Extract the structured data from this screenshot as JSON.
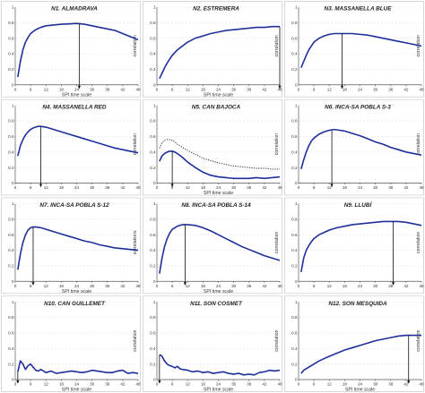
{
  "chart_data": [
    {
      "type": "line",
      "title": "N1. ALMADRAVA",
      "xlabel": "SPI time scale",
      "ylabel": "correlation",
      "ylim": [
        0,
        1
      ],
      "xticks": [
        0,
        6,
        12,
        18,
        24,
        30,
        36,
        42,
        48
      ],
      "yticks": [
        0,
        0.2,
        0.4,
        0.6,
        0.8,
        1
      ],
      "series": [
        {
          "x": [
            1,
            2,
            3,
            4,
            5,
            6,
            8,
            10,
            12,
            15,
            18,
            21,
            24,
            27,
            30,
            33,
            36,
            39,
            42,
            45,
            48
          ],
          "values": [
            0.1,
            0.3,
            0.45,
            0.55,
            0.61,
            0.66,
            0.71,
            0.74,
            0.76,
            0.77,
            0.78,
            0.785,
            0.79,
            0.78,
            0.76,
            0.74,
            0.72,
            0.7,
            0.66,
            0.62,
            0.58
          ],
          "style": "solid"
        }
      ],
      "arrow_x": 25
    },
    {
      "type": "line",
      "title": "N2. ESTREMERA",
      "xlabel": "SPI time scale",
      "ylabel": "correlation",
      "ylim": [
        0,
        1
      ],
      "xticks": [
        0,
        6,
        12,
        18,
        24,
        30,
        36,
        42,
        48
      ],
      "yticks": [
        0,
        0.2,
        0.4,
        0.6,
        0.8,
        1
      ],
      "series": [
        {
          "x": [
            1,
            2,
            3,
            4,
            5,
            6,
            8,
            10,
            12,
            15,
            18,
            21,
            24,
            27,
            30,
            33,
            36,
            39,
            42,
            45,
            48
          ],
          "values": [
            0.08,
            0.15,
            0.22,
            0.28,
            0.33,
            0.38,
            0.45,
            0.5,
            0.55,
            0.6,
            0.63,
            0.66,
            0.68,
            0.7,
            0.71,
            0.72,
            0.73,
            0.74,
            0.74,
            0.75,
            0.75
          ],
          "style": "solid"
        }
      ],
      "arrow_x": 48
    },
    {
      "type": "line",
      "title": "N3. MASSANELLA BLUE",
      "xlabel": "",
      "ylabel": "correlation",
      "ylim": [
        0,
        1
      ],
      "xticks": [
        0,
        6,
        12,
        18,
        24,
        30,
        36,
        42,
        48
      ],
      "yticks": [
        0,
        0.2,
        0.4,
        0.6,
        0.8,
        1
      ],
      "series": [
        {
          "x": [
            1,
            2,
            3,
            4,
            5,
            6,
            8,
            10,
            12,
            14,
            16,
            18,
            21,
            24,
            27,
            30,
            33,
            36,
            39,
            42,
            45,
            48
          ],
          "values": [
            0.22,
            0.3,
            0.38,
            0.45,
            0.5,
            0.55,
            0.6,
            0.63,
            0.65,
            0.66,
            0.66,
            0.66,
            0.66,
            0.65,
            0.64,
            0.62,
            0.6,
            0.58,
            0.56,
            0.54,
            0.52,
            0.5
          ],
          "style": "solid"
        }
      ],
      "arrow_x": 17
    },
    {
      "type": "line",
      "title": "N4. MASSANELLA RED",
      "xlabel": "",
      "ylabel": "correlation",
      "ylim": [
        0,
        1
      ],
      "xticks": [
        0,
        6,
        12,
        18,
        24,
        30,
        36,
        42,
        48
      ],
      "yticks": [
        0,
        0.2,
        0.4,
        0.6,
        0.8,
        1
      ],
      "series": [
        {
          "x": [
            1,
            2,
            3,
            4,
            5,
            6,
            7,
            8,
            9,
            10,
            12,
            15,
            18,
            21,
            24,
            27,
            30,
            33,
            36,
            39,
            42,
            45,
            48
          ],
          "values": [
            0.35,
            0.48,
            0.56,
            0.62,
            0.66,
            0.69,
            0.71,
            0.72,
            0.73,
            0.73,
            0.72,
            0.69,
            0.66,
            0.63,
            0.6,
            0.57,
            0.54,
            0.51,
            0.48,
            0.45,
            0.43,
            0.41,
            0.39
          ],
          "style": "solid"
        }
      ],
      "arrow_x": 10
    },
    {
      "type": "line",
      "title": "N5. CAN BAJOCA",
      "xlabel": "SPI time scale",
      "ylabel": "correlation",
      "ylim": [
        0,
        1
      ],
      "xticks": [
        0,
        6,
        12,
        18,
        24,
        30,
        36,
        42,
        48
      ],
      "yticks": [
        0,
        0.2,
        0.4,
        0.6,
        0.8,
        1
      ],
      "series": [
        {
          "x": [
            1,
            2,
            3,
            4,
            5,
            6,
            7,
            8,
            10,
            12,
            15,
            18,
            21,
            24,
            27,
            30,
            33,
            36,
            39,
            42,
            45,
            48
          ],
          "values": [
            0.28,
            0.35,
            0.38,
            0.4,
            0.41,
            0.41,
            0.4,
            0.38,
            0.33,
            0.27,
            0.2,
            0.14,
            0.1,
            0.08,
            0.07,
            0.06,
            0.06,
            0.06,
            0.07,
            0.06,
            0.07,
            0.08
          ],
          "style": "solid"
        },
        {
          "x": [
            1,
            2,
            3,
            4,
            5,
            6,
            7,
            8,
            10,
            12,
            15,
            18,
            21,
            24,
            27,
            30,
            33,
            36,
            39,
            42,
            45,
            48
          ],
          "values": [
            0.45,
            0.52,
            0.55,
            0.56,
            0.56,
            0.55,
            0.53,
            0.5,
            0.46,
            0.42,
            0.37,
            0.32,
            0.29,
            0.26,
            0.24,
            0.22,
            0.21,
            0.2,
            0.19,
            0.19,
            0.18,
            0.18
          ],
          "style": "dotted"
        }
      ],
      "arrow_x": 6
    },
    {
      "type": "line",
      "title": "N6. INCA-SA POBLA S-3",
      "xlabel": "",
      "ylabel": "correlation",
      "ylim": [
        0,
        1
      ],
      "xticks": [
        0,
        6,
        12,
        18,
        24,
        30,
        36,
        42,
        48
      ],
      "yticks": [
        0,
        0.2,
        0.4,
        0.6,
        0.8,
        1
      ],
      "series": [
        {
          "x": [
            1,
            2,
            3,
            4,
            5,
            6,
            8,
            10,
            12,
            14,
            16,
            18,
            21,
            24,
            27,
            30,
            33,
            36,
            39,
            42,
            45,
            48
          ],
          "values": [
            0.18,
            0.3,
            0.4,
            0.48,
            0.54,
            0.58,
            0.63,
            0.66,
            0.68,
            0.69,
            0.68,
            0.67,
            0.64,
            0.61,
            0.57,
            0.53,
            0.5,
            0.46,
            0.43,
            0.4,
            0.38,
            0.36
          ],
          "style": "solid"
        }
      ],
      "arrow_x": 13
    },
    {
      "type": "line",
      "title": "N7. INCA-SA POBLA S-12",
      "xlabel": "SPI time scale",
      "ylabel": "correlations",
      "ylim": [
        0,
        1
      ],
      "xticks": [
        0,
        6,
        12,
        18,
        24,
        30,
        36,
        42,
        48
      ],
      "yticks": [
        0,
        0.2,
        0.4,
        0.6,
        0.8,
        1
      ],
      "series": [
        {
          "x": [
            1,
            2,
            3,
            4,
            5,
            6,
            7,
            8,
            10,
            12,
            15,
            18,
            21,
            24,
            27,
            30,
            33,
            36,
            39,
            42,
            45,
            48
          ],
          "values": [
            0.15,
            0.35,
            0.5,
            0.6,
            0.66,
            0.69,
            0.7,
            0.7,
            0.69,
            0.67,
            0.64,
            0.61,
            0.58,
            0.55,
            0.52,
            0.5,
            0.47,
            0.45,
            0.43,
            0.42,
            0.41,
            0.4
          ],
          "style": "solid"
        }
      ],
      "arrow_x": 7
    },
    {
      "type": "line",
      "title": "N8. INCA-SA POBLA S-14",
      "xlabel": "SPI time scale",
      "ylabel": "correlation",
      "ylim": [
        0,
        1
      ],
      "xticks": [
        0,
        6,
        12,
        18,
        24,
        30,
        36,
        42,
        48
      ],
      "yticks": [
        0,
        0.2,
        0.4,
        0.6,
        0.8,
        1
      ],
      "series": [
        {
          "x": [
            1,
            2,
            3,
            4,
            5,
            6,
            8,
            10,
            12,
            15,
            18,
            21,
            24,
            27,
            30,
            33,
            36,
            39,
            42,
            45,
            48
          ],
          "values": [
            0.1,
            0.3,
            0.45,
            0.55,
            0.62,
            0.67,
            0.71,
            0.73,
            0.73,
            0.72,
            0.69,
            0.65,
            0.6,
            0.55,
            0.5,
            0.45,
            0.41,
            0.37,
            0.33,
            0.3,
            0.27
          ],
          "style": "solid"
        }
      ],
      "arrow_x": 11
    },
    {
      "type": "line",
      "title": "N9. LLUBÍ",
      "xlabel": "",
      "ylabel": "correlation",
      "ylim": [
        0,
        1
      ],
      "xticks": [
        0,
        6,
        12,
        18,
        24,
        30,
        36,
        42,
        48
      ],
      "yticks": [
        0,
        0.2,
        0.4,
        0.6,
        0.8,
        1
      ],
      "series": [
        {
          "x": [
            1,
            2,
            3,
            4,
            5,
            6,
            8,
            10,
            12,
            15,
            18,
            21,
            24,
            27,
            30,
            33,
            36,
            39,
            42,
            45,
            48
          ],
          "values": [
            0.12,
            0.3,
            0.4,
            0.46,
            0.51,
            0.55,
            0.6,
            0.63,
            0.66,
            0.69,
            0.71,
            0.73,
            0.74,
            0.75,
            0.76,
            0.77,
            0.77,
            0.77,
            0.76,
            0.74,
            0.72
          ],
          "style": "solid"
        }
      ],
      "arrow_x": 37
    },
    {
      "type": "line",
      "title": "N10. CAN GUILLEMET",
      "xlabel": "SPI time scale",
      "ylabel": "correlation",
      "ylim": [
        0,
        1
      ],
      "xticks": [
        0,
        6,
        12,
        18,
        24,
        30,
        36,
        42,
        48
      ],
      "yticks": [
        0,
        0.2,
        0.4,
        0.6,
        0.8,
        1
      ],
      "series": [
        {
          "x": [
            1,
            2,
            3,
            4,
            5,
            6,
            7,
            8,
            9,
            10,
            12,
            14,
            16,
            18,
            20,
            22,
            24,
            26,
            28,
            30,
            32,
            34,
            36,
            38,
            40,
            42,
            44,
            46,
            48
          ],
          "values": [
            0.1,
            0.24,
            0.2,
            0.13,
            0.18,
            0.2,
            0.16,
            0.12,
            0.11,
            0.13,
            0.09,
            0.11,
            0.08,
            0.09,
            0.1,
            0.11,
            0.1,
            0.09,
            0.1,
            0.12,
            0.11,
            0.1,
            0.09,
            0.09,
            0.11,
            0.12,
            0.08,
            0.09,
            0.08
          ],
          "style": "solid"
        }
      ],
      "arrow_x": 1
    },
    {
      "type": "line",
      "title": "N11. SON COSMET",
      "xlabel": "SPI time scale",
      "ylabel": "correlation",
      "ylim": [
        0,
        1
      ],
      "xticks": [
        0,
        6,
        12,
        18,
        24,
        30,
        36,
        42,
        48
      ],
      "yticks": [
        0,
        0.2,
        0.4,
        0.6,
        0.8,
        1
      ],
      "series": [
        {
          "x": [
            1,
            2,
            3,
            4,
            5,
            6,
            7,
            8,
            9,
            10,
            12,
            14,
            16,
            18,
            20,
            22,
            24,
            26,
            28,
            30,
            32,
            34,
            36,
            38,
            40,
            42,
            44,
            46,
            48
          ],
          "values": [
            0.32,
            0.3,
            0.24,
            0.2,
            0.18,
            0.17,
            0.15,
            0.17,
            0.14,
            0.13,
            0.12,
            0.1,
            0.11,
            0.09,
            0.1,
            0.08,
            0.09,
            0.1,
            0.08,
            0.07,
            0.08,
            0.06,
            0.07,
            0.06,
            0.09,
            0.1,
            0.12,
            0.11,
            0.12
          ],
          "style": "solid"
        }
      ],
      "arrow_x": 1
    },
    {
      "type": "line",
      "title": "N12. SON MESQUIDA",
      "xlabel": "SPI time scale",
      "ylabel": "correlation",
      "ylim": [
        0,
        1
      ],
      "xticks": [
        0,
        6,
        12,
        18,
        24,
        30,
        36,
        42,
        48
      ],
      "yticks": [
        0,
        0.2,
        0.4,
        0.6,
        0.8,
        1
      ],
      "series": [
        {
          "x": [
            1,
            2,
            3,
            4,
            5,
            6,
            8,
            10,
            12,
            15,
            18,
            21,
            24,
            27,
            30,
            33,
            36,
            39,
            42,
            45,
            48
          ],
          "values": [
            0.08,
            0.12,
            0.14,
            0.16,
            0.18,
            0.2,
            0.24,
            0.27,
            0.3,
            0.34,
            0.38,
            0.41,
            0.44,
            0.47,
            0.5,
            0.52,
            0.54,
            0.56,
            0.57,
            0.57,
            0.57
          ],
          "style": "solid"
        }
      ],
      "arrow_x": 43
    }
  ]
}
